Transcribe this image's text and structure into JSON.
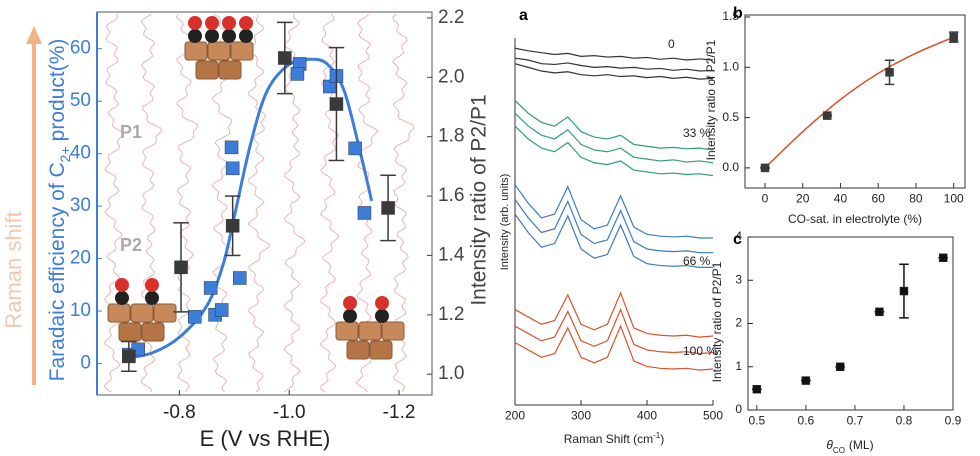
{
  "chart_data": [
    {
      "type": "scatter",
      "x_label": "E (V vs RHE)",
      "y_label": {
        "text": "Faradaic efficiency of C",
        "subscript": "2+",
        "suffix": "product(%)"
      },
      "y2_label": "Intensity ratio of P2/P1",
      "annotations": [
        "P1",
        "P2",
        "Raman shift"
      ],
      "xlim": [
        -0.65,
        -1.26
      ],
      "xticks": [
        -0.8,
        {
          "value": -1,
          "label": "-1.0"
        },
        -1.2
      ],
      "ylim": [
        -6,
        67
      ],
      "yticks": [
        0,
        10,
        20,
        30,
        40,
        50,
        60
      ],
      "y2lim": [
        0.93,
        2.22
      ],
      "y2ticks": [
        {
          "value": 1,
          "label": "1.0"
        },
        1.2,
        1.4,
        1.6,
        1.8,
        {
          "value": 2,
          "label": "2.0"
        },
        2.2
      ],
      "series": [
        {
          "style": "line",
          "color": "#3b7dd8",
          "x": [
            -0.7,
            -0.75,
            -0.8,
            -0.85,
            -0.88,
            -0.9,
            -0.93,
            -0.96,
            -1.0,
            -1.04,
            -1.07,
            -1.1,
            -1.13,
            -1.15
          ],
          "values": [
            1,
            2,
            5,
            11,
            19,
            28,
            42,
            52,
            57,
            58,
            57,
            52,
            40,
            31
          ]
        },
        {
          "style": "square",
          "color": "#3b7dd8",
          "x": [
            -0.708,
            -0.725,
            -0.828,
            -0.857,
            -0.865,
            -0.877,
            -0.91,
            -0.897,
            -0.895,
            -1.019,
            -1.015,
            -1.074,
            -1.086,
            -1.12,
            -1.137
          ],
          "values": [
            1.7,
            2.7,
            8.9,
            14.4,
            9.3,
            10.2,
            16.3,
            37.2,
            41.2,
            57.1,
            55.2,
            52.8,
            54.8,
            41,
            28.7
          ]
        },
        {
          "style": "square",
          "axis": "y2",
          "color": "#3a3a3a",
          "x": [
            -0.708,
            -0.803,
            -0.897,
            -0.992,
            -1.086,
            -1.18
          ],
          "values": [
            1.06,
            1.36,
            1.5,
            2.065,
            1.91,
            1.56
          ],
          "errors": [
            0.05,
            0.15,
            0.1,
            0.12,
            0.19,
            0.11
          ]
        }
      ]
    },
    {
      "type": "line",
      "panel_label": "a",
      "x_label": {
        "text": "Raman Shift (cm",
        "superscript": "-1",
        "suffix": ")"
      },
      "y_label": "Intensity (arb. units)",
      "xlim": [
        200,
        500
      ],
      "xticks": [
        200,
        300,
        400,
        500
      ],
      "ylim": [
        0,
        10
      ],
      "x": [
        200,
        220,
        240,
        260,
        280,
        300,
        320,
        340,
        360,
        380,
        400,
        420,
        440,
        460,
        480,
        500
      ],
      "groups": [
        {
          "name": "0",
          "color": "#333333",
          "lines": [
            [
              9.72,
              9.65,
              9.6,
              9.55,
              9.58,
              9.5,
              9.52,
              9.48,
              9.5,
              9.45,
              9.47,
              9.42,
              9.45,
              9.4,
              9.43,
              9.4
            ],
            [
              9.45,
              9.4,
              9.3,
              9.28,
              9.32,
              9.25,
              9.2,
              9.22,
              9.18,
              9.2,
              9.15,
              9.17,
              9.12,
              9.15,
              9.1,
              9.12
            ],
            [
              9.3,
              9.2,
              9.1,
              9.05,
              9.08,
              9.0,
              8.97,
              9.0,
              8.95,
              8.97,
              8.92,
              8.95,
              8.9,
              8.93,
              8.88,
              8.9
            ]
          ]
        },
        {
          "name": "33 %",
          "color": "#2e9e7a",
          "lines": [
            [
              8.3,
              7.95,
              7.7,
              7.6,
              7.85,
              7.45,
              7.3,
              7.25,
              7.35,
              7.1,
              7.05,
              7.0,
              7.02,
              6.98,
              7.0,
              6.95
            ],
            [
              7.95,
              7.6,
              7.35,
              7.25,
              7.5,
              7.1,
              6.95,
              6.9,
              7.0,
              6.75,
              6.7,
              6.65,
              6.68,
              6.62,
              6.65,
              6.6
            ],
            [
              7.6,
              7.25,
              7.0,
              6.9,
              7.15,
              6.75,
              6.6,
              6.55,
              6.65,
              6.4,
              6.35,
              6.3,
              6.32,
              6.28,
              6.3,
              6.25
            ]
          ]
        },
        {
          "name": "66 %",
          "color": "#3a7cc0",
          "lines": [
            [
              6.0,
              5.5,
              5.1,
              5.2,
              5.95,
              5.05,
              4.8,
              4.9,
              5.7,
              4.85,
              4.65,
              4.6,
              4.58,
              4.6,
              4.55,
              4.55
            ],
            [
              5.6,
              5.1,
              4.7,
              4.8,
              5.55,
              4.65,
              4.4,
              4.5,
              5.3,
              4.45,
              4.25,
              4.2,
              4.18,
              4.2,
              4.15,
              4.15
            ],
            [
              5.2,
              4.7,
              4.3,
              4.4,
              5.15,
              4.25,
              4.0,
              4.1,
              4.9,
              4.05,
              3.85,
              3.8,
              3.78,
              3.8,
              3.75,
              3.75
            ]
          ]
        },
        {
          "name": "100 %",
          "color": "#d9532b",
          "lines": [
            [
              2.6,
              2.4,
              2.2,
              2.3,
              3.0,
              2.2,
              2.05,
              2.2,
              3.05,
              2.1,
              1.95,
              1.9,
              1.88,
              1.9,
              1.85,
              1.88
            ],
            [
              2.15,
              1.95,
              1.75,
              1.85,
              2.55,
              1.75,
              1.6,
              1.75,
              2.6,
              1.65,
              1.5,
              1.45,
              1.43,
              1.45,
              1.4,
              1.43
            ],
            [
              1.7,
              1.5,
              1.3,
              1.4,
              2.1,
              1.3,
              1.15,
              1.3,
              2.15,
              1.2,
              1.05,
              1.0,
              0.98,
              1.0,
              0.95,
              0.98
            ]
          ]
        }
      ]
    },
    {
      "type": "scatter",
      "panel_label": "b",
      "x_label": "CO-sat. in electrolyte (%)",
      "y_label": "Intensity ratio of P2/P1",
      "xlim": [
        -10.6,
        106
      ],
      "xticks": [
        0,
        20,
        40,
        60,
        80,
        100
      ],
      "ylim": [
        -0.2,
        1.52
      ],
      "yticks": [
        {
          "value": 0,
          "label": "0.0"
        },
        0.5,
        {
          "value": 1,
          "label": "1.0"
        },
        1.5
      ],
      "series": [
        {
          "style": "line",
          "color": "#d9532b",
          "x": [
            0,
            20,
            40,
            60,
            80,
            100
          ],
          "values": [
            0,
            0.36,
            0.68,
            0.94,
            1.14,
            1.3
          ]
        },
        {
          "style": "square",
          "color": "#3a3a3a",
          "x": [
            0,
            33,
            66,
            100
          ],
          "values": [
            0,
            0.52,
            0.95,
            1.3
          ],
          "errors": [
            0,
            0,
            0.12,
            0.05
          ]
        }
      ]
    },
    {
      "type": "scatter",
      "panel_label": "c",
      "x_label": {
        "symbol": "θ",
        "subscript": "CO",
        "unit": "(ML)"
      },
      "y_label": "Intensity ratio of P2/P1",
      "xlim": [
        0.482,
        0.9
      ],
      "xticks": [
        0.5,
        0.6,
        0.7,
        0.8,
        0.9
      ],
      "ylim": [
        0,
        4
      ],
      "yticks": [
        0,
        1,
        2,
        3,
        4
      ],
      "series": [
        {
          "style": "square",
          "color": "#111111",
          "x": [
            0.5,
            0.6,
            0.67,
            0.75,
            0.8,
            0.88
          ],
          "values": [
            0.48,
            0.68,
            1.0,
            2.27,
            2.75,
            3.52
          ],
          "errors": [
            0,
            0,
            0,
            0,
            0.62,
            0
          ]
        }
      ]
    }
  ]
}
